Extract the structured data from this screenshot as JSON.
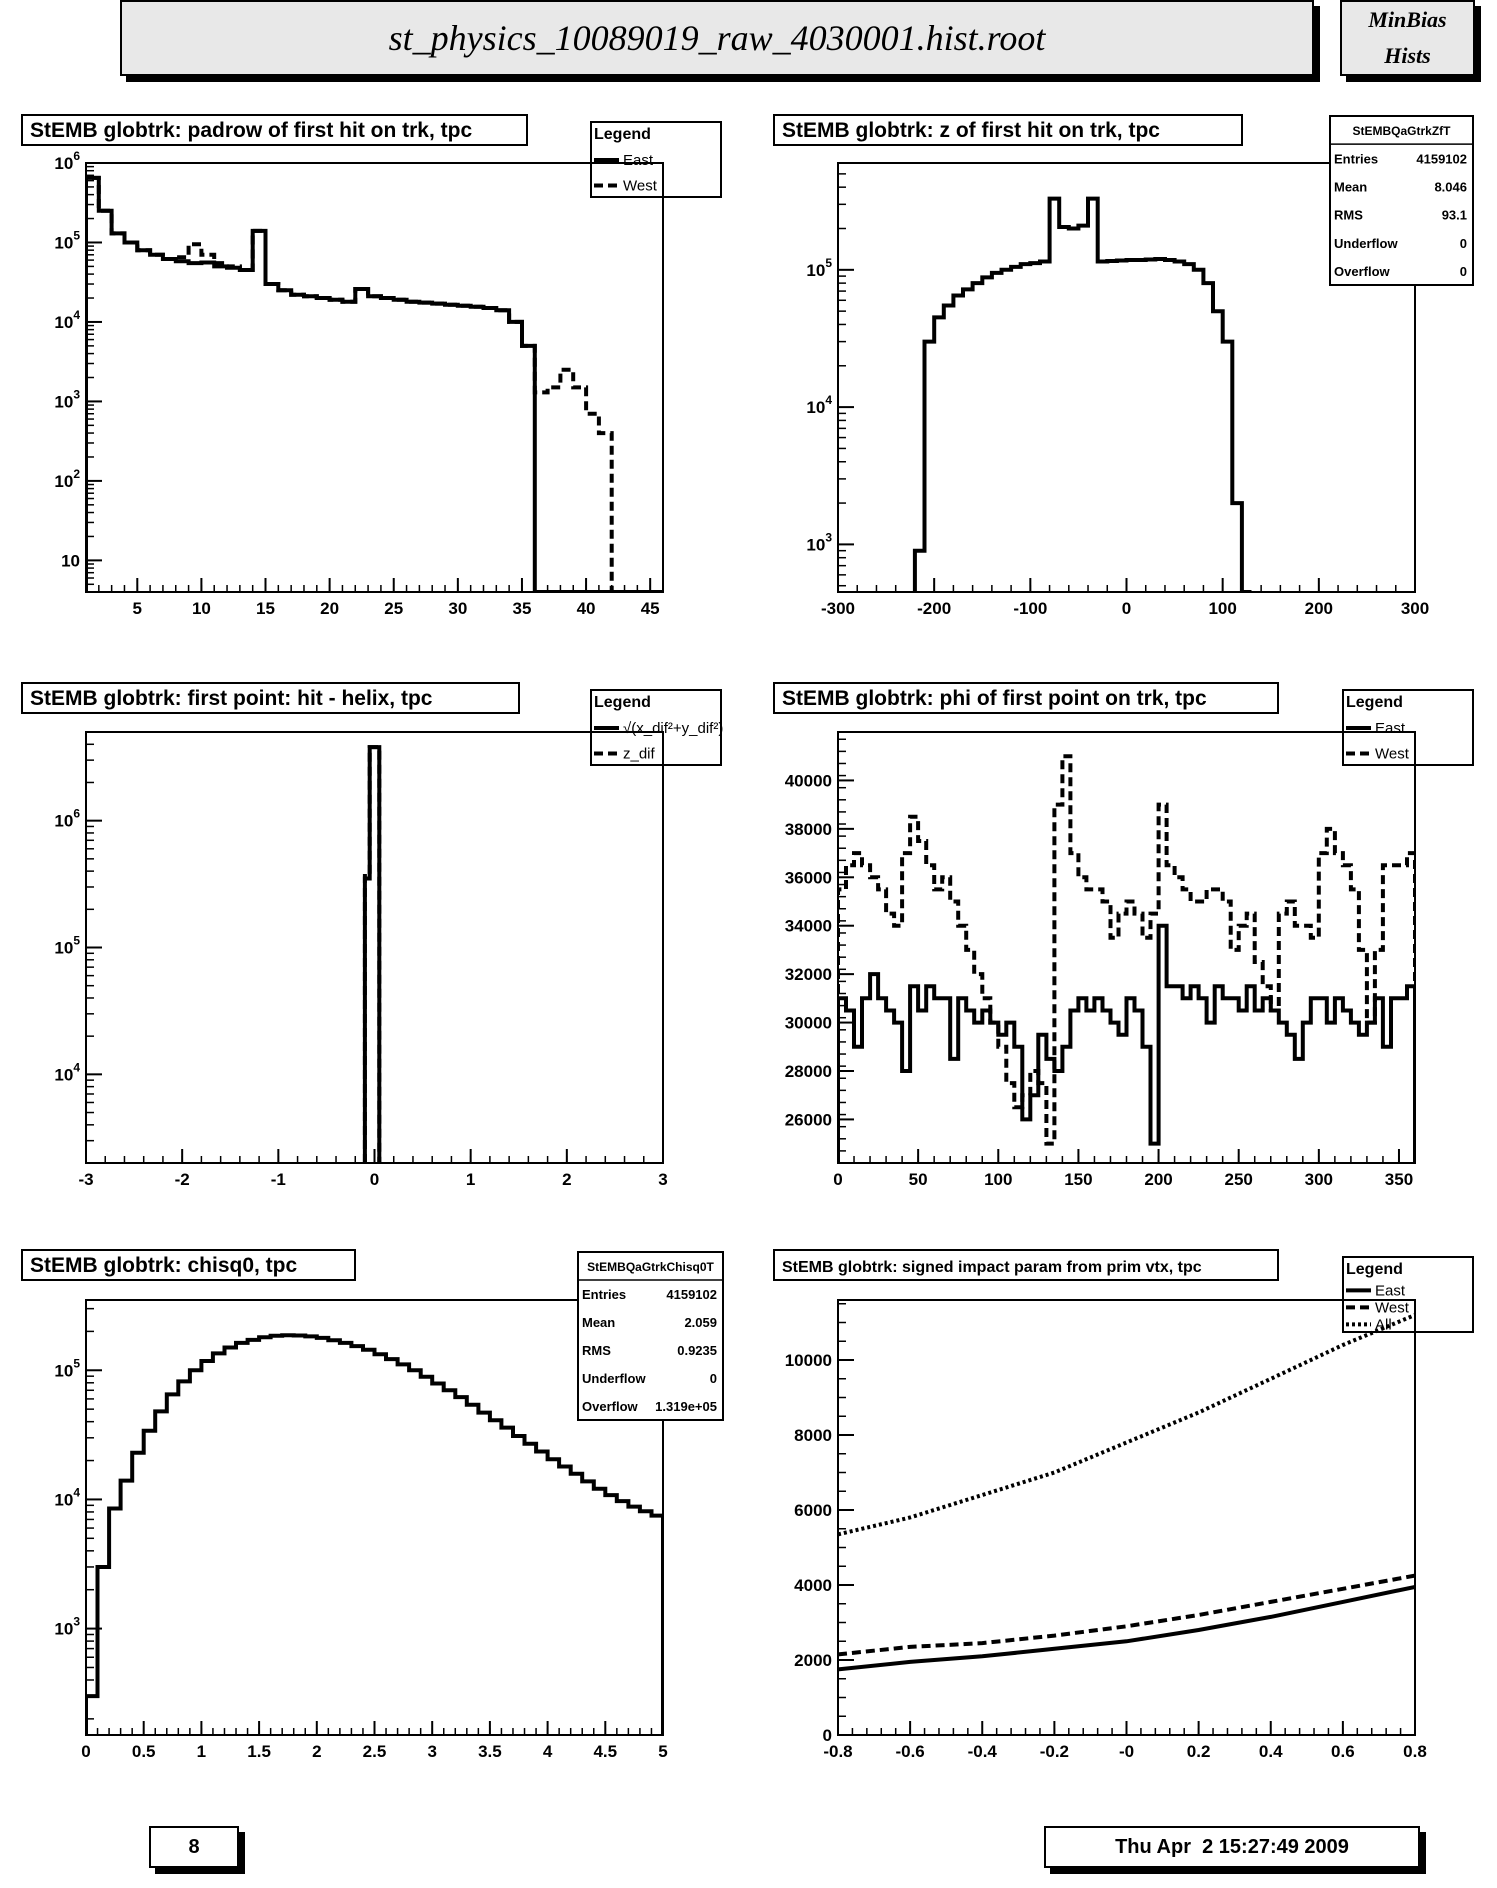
{
  "header": {
    "title": "st_physics_10089019_raw_4030001.hist.root",
    "side_line1": "MinBias",
    "side_line2": "Hists"
  },
  "footer": {
    "page_number": "8",
    "timestamp": "Thu Apr  2 15:27:49 2009"
  },
  "chart_data": [
    {
      "type": "line",
      "title": "StEMB globtrk: padrow of first hit on trk, tpc",
      "xlim": [
        1,
        46
      ],
      "ylim": [
        4,
        1000000
      ],
      "log_y": true,
      "x_ticks": [
        5,
        10,
        15,
        20,
        25,
        30,
        35,
        40,
        45
      ],
      "y_ticks": [
        {
          "value": 10,
          "label": "10"
        },
        {
          "value": 100,
          "label": "10^2"
        },
        {
          "value": 1000,
          "label": "10^3"
        },
        {
          "value": 10000,
          "label": "10^4"
        },
        {
          "value": 100000,
          "label": "10^5"
        },
        {
          "value": 1000000,
          "label": "10^6"
        }
      ],
      "legend": {
        "title": "Legend",
        "position": "top-right",
        "entries": [
          {
            "label": "East",
            "style": "solid"
          },
          {
            "label": "West",
            "style": "dashed"
          }
        ]
      },
      "series": [
        {
          "name": "East",
          "style": "solid",
          "hist": true,
          "x_start": 1,
          "bin_width": 1,
          "values": [
            650000,
            250000,
            130000,
            100000,
            80000,
            70000,
            62000,
            58000,
            55000,
            56000,
            50000,
            48000,
            45000,
            140000,
            30000,
            25000,
            22000,
            21000,
            20000,
            19000,
            18000,
            26000,
            21000,
            20000,
            19000,
            18000,
            17500,
            17000,
            16500,
            16000,
            15500,
            15000,
            14000,
            10000,
            5000,
            0,
            0,
            0,
            0,
            0,
            0,
            0,
            0,
            0,
            0
          ]
        },
        {
          "name": "West",
          "style": "dashed",
          "hist": true,
          "x_start": 1,
          "bin_width": 1,
          "values": [
            650000,
            250000,
            130000,
            100000,
            80000,
            70000,
            62000,
            65000,
            95000,
            70000,
            55000,
            50000,
            45000,
            140000,
            30000,
            25000,
            22000,
            21000,
            20000,
            19000,
            18000,
            26000,
            21000,
            20000,
            19000,
            18000,
            17500,
            17000,
            16500,
            16000,
            15500,
            15000,
            14000,
            10000,
            5000,
            1300,
            1500,
            2500,
            1500,
            700,
            400,
            0,
            0,
            0,
            0
          ]
        }
      ],
      "stats": null
    },
    {
      "type": "line",
      "title": "StEMB globtrk: z of first hit on trk, tpc",
      "xlim": [
        -300,
        300
      ],
      "ylim": [
        450,
        600000
      ],
      "log_y": true,
      "x_ticks": [
        -300,
        -200,
        -100,
        0,
        100,
        200,
        300
      ],
      "y_ticks": [
        {
          "value": 1000,
          "label": "10^3"
        },
        {
          "value": 10000,
          "label": "10^4"
        },
        {
          "value": 100000,
          "label": "10^5"
        }
      ],
      "legend": null,
      "series": [
        {
          "name": "",
          "style": "solid",
          "hist": true,
          "x_start": -220,
          "bin_width": 10,
          "values": [
            900,
            30000,
            45000,
            55000,
            65000,
            72000,
            80000,
            88000,
            95000,
            100000,
            105000,
            110000,
            112000,
            115000,
            330000,
            205000,
            200000,
            210000,
            330000,
            115000,
            116000,
            117000,
            118000,
            118000,
            119000,
            120000,
            118000,
            115000,
            110000,
            100000,
            80000,
            50000,
            30000,
            2000,
            0
          ]
        }
      ],
      "stats": {
        "title": "StEMBQaGtrkZfT",
        "rows": [
          {
            "label": "Entries",
            "value": "4159102"
          },
          {
            "label": "Mean",
            "value": "8.046"
          },
          {
            "label": "RMS",
            "value": "93.1"
          },
          {
            "label": "Underflow",
            "value": "0"
          },
          {
            "label": "Overflow",
            "value": "0"
          }
        ]
      }
    },
    {
      "type": "line",
      "title": "StEMB globtrk: first point: hit - helix, tpc",
      "xlim": [
        -3,
        3
      ],
      "ylim": [
        2000,
        5000000
      ],
      "log_y": true,
      "x_ticks": [
        -3,
        -2,
        -1,
        0,
        1,
        2,
        3
      ],
      "y_ticks": [
        {
          "value": 10000,
          "label": "10^4"
        },
        {
          "value": 100000,
          "label": "10^5"
        },
        {
          "value": 1000000,
          "label": "10^6"
        }
      ],
      "legend": {
        "title": "Legend",
        "position": "top-right",
        "entries": [
          {
            "label": "√(x_dif²+y_dif²)",
            "style": "solid"
          },
          {
            "label": "z_dif",
            "style": "dashed"
          }
        ]
      },
      "series": [
        {
          "name": "√(x_dif²+y_dif²)",
          "style": "solid",
          "hist": true,
          "x_start": -0.1,
          "bin_width": 0.05,
          "values": [
            350000,
            3800000,
            3800000
          ]
        },
        {
          "name": "z_dif",
          "style": "dashed",
          "hist": true,
          "x_start": -0.1,
          "bin_width": 0.05,
          "values": [
            380000,
            3800000,
            3800000
          ]
        }
      ],
      "stats": null
    },
    {
      "type": "line",
      "title": "StEMB globtrk: phi of first point on trk, tpc",
      "xlim": [
        0,
        360
      ],
      "ylim": [
        24200,
        42000
      ],
      "log_y": false,
      "x_ticks": [
        0,
        50,
        100,
        150,
        200,
        250,
        300,
        350
      ],
      "y_ticks": [
        {
          "value": 26000,
          "label": "26000"
        },
        {
          "value": 28000,
          "label": "28000"
        },
        {
          "value": 30000,
          "label": "30000"
        },
        {
          "value": 32000,
          "label": "32000"
        },
        {
          "value": 34000,
          "label": "34000"
        },
        {
          "value": 36000,
          "label": "36000"
        },
        {
          "value": 38000,
          "label": "38000"
        },
        {
          "value": 40000,
          "label": "40000"
        }
      ],
      "legend": {
        "title": "Legend",
        "position": "top-right",
        "entries": [
          {
            "label": "East",
            "style": "solid"
          },
          {
            "label": "West",
            "style": "dashed"
          }
        ]
      },
      "series": [
        {
          "name": "East",
          "style": "solid",
          "hist": true,
          "x_start": 0,
          "bin_width": 5,
          "values": [
            31000,
            30500,
            29000,
            31000,
            32000,
            31000,
            30500,
            30000,
            28000,
            31500,
            30500,
            31500,
            31000,
            31000,
            28500,
            31000,
            30500,
            30000,
            30500,
            30000,
            29500,
            30000,
            29000,
            26000,
            27000,
            29500,
            28500,
            28000,
            29000,
            30500,
            31000,
            30500,
            31000,
            30500,
            30000,
            29500,
            31000,
            30500,
            29000,
            25000,
            34000,
            31500,
            31500,
            31000,
            31500,
            31000,
            30000,
            31500,
            31000,
            31000,
            30500,
            31500,
            30500,
            31000,
            30500,
            30000,
            29500,
            28500,
            30000,
            31000,
            31000,
            30000,
            31000,
            30500,
            30000,
            29500,
            30000,
            31000,
            29000,
            31000,
            31000,
            31500
          ]
        },
        {
          "name": "West",
          "style": "dashed",
          "hist": true,
          "x_start": 0,
          "bin_width": 5,
          "values": [
            35500,
            36500,
            37000,
            36500,
            36000,
            35500,
            34500,
            34000,
            37000,
            38500,
            37500,
            36500,
            35500,
            36000,
            35000,
            34000,
            33000,
            32000,
            31000,
            30000,
            29000,
            27500,
            26500,
            27000,
            28000,
            27500,
            25000,
            39000,
            41000,
            37000,
            36000,
            35500,
            35500,
            35000,
            33500,
            34500,
            35000,
            34500,
            33500,
            34500,
            39000,
            36500,
            36000,
            35500,
            35000,
            35000,
            35500,
            35500,
            35000,
            33000,
            34000,
            34500,
            32500,
            31500,
            30500,
            34500,
            35000,
            34000,
            34000,
            33500,
            37000,
            38000,
            37000,
            36500,
            35500,
            33000,
            30000,
            33000,
            36500,
            36500,
            36500,
            37000
          ]
        }
      ],
      "stats": null
    },
    {
      "type": "line",
      "title": "StEMB globtrk: chisq0, tpc",
      "xlim": [
        0,
        5
      ],
      "ylim": [
        150,
        350000
      ],
      "log_y": true,
      "x_ticks": [
        0,
        0.5,
        1,
        1.5,
        2,
        2.5,
        3,
        3.5,
        4,
        4.5,
        5
      ],
      "y_ticks": [
        {
          "value": 1000,
          "label": "10^3"
        },
        {
          "value": 10000,
          "label": "10^4"
        },
        {
          "value": 100000,
          "label": "10^5"
        }
      ],
      "legend": null,
      "series": [
        {
          "name": "",
          "style": "solid",
          "hist": true,
          "x_start": 0,
          "bin_width": 0.1,
          "values": [
            300,
            3000,
            8500,
            14000,
            23000,
            34000,
            48000,
            65000,
            82000,
            100000,
            118000,
            135000,
            150000,
            163000,
            172000,
            180000,
            185000,
            187000,
            186000,
            183000,
            178000,
            171000,
            163000,
            154000,
            144000,
            133000,
            122000,
            111000,
            100000,
            89000,
            79000,
            70000,
            62000,
            54000,
            47000,
            41000,
            36000,
            31000,
            27000,
            23500,
            20500,
            18000,
            15800,
            13800,
            12100,
            10800,
            9700,
            8800,
            8100,
            7500
          ]
        }
      ],
      "stats": {
        "title": "StEMBQaGtrkChisq0T",
        "rows": [
          {
            "label": "Entries",
            "value": "4159102"
          },
          {
            "label": "Mean",
            "value": "2.059"
          },
          {
            "label": "RMS",
            "value": "0.9235"
          },
          {
            "label": "Underflow",
            "value": "0"
          },
          {
            "label": "Overflow",
            "value": "1.319e+05"
          }
        ]
      }
    },
    {
      "type": "line",
      "title": "StEMB globtrk: signed impact param from prim vtx, tpc",
      "xlim": [
        -0.8,
        0.8
      ],
      "ylim": [
        0,
        11600
      ],
      "log_y": false,
      "x_ticks": [
        -0.8,
        -0.6,
        -0.4,
        -0.2,
        0,
        0.2,
        0.4,
        0.6,
        0.8
      ],
      "x_tick_labels": [
        "-0.8",
        "-0.6",
        "-0.4",
        "-0.2",
        "-0",
        "0.2",
        "0.4",
        "0.6",
        "0.8"
      ],
      "y_ticks": [
        {
          "value": 0,
          "label": "0"
        },
        {
          "value": 2000,
          "label": "2000"
        },
        {
          "value": 4000,
          "label": "4000"
        },
        {
          "value": 6000,
          "label": "6000"
        },
        {
          "value": 8000,
          "label": "8000"
        },
        {
          "value": 10000,
          "label": "10000"
        }
      ],
      "legend": {
        "title": "Legend",
        "position": "top-right",
        "entries": [
          {
            "label": "East",
            "style": "solid"
          },
          {
            "label": "West",
            "style": "dashed"
          },
          {
            "label": "All",
            "style": "dotted"
          }
        ]
      },
      "series": [
        {
          "name": "East",
          "style": "solid",
          "hist": false,
          "x": [
            -0.8,
            -0.6,
            -0.4,
            -0.2,
            0.0,
            0.2,
            0.4,
            0.6,
            0.8
          ],
          "values": [
            1750,
            1950,
            2100,
            2300,
            2500,
            2800,
            3150,
            3550,
            3950
          ]
        },
        {
          "name": "West",
          "style": "dashed",
          "hist": false,
          "x": [
            -0.8,
            -0.6,
            -0.4,
            -0.2,
            0.0,
            0.2,
            0.4,
            0.6,
            0.8
          ],
          "values": [
            2150,
            2350,
            2450,
            2650,
            2900,
            3200,
            3550,
            3900,
            4250
          ]
        },
        {
          "name": "All",
          "style": "dotted",
          "hist": false,
          "x": [
            -0.8,
            -0.6,
            -0.4,
            -0.2,
            0.0,
            0.2,
            0.4,
            0.6,
            0.8
          ],
          "values": [
            5350,
            5800,
            6400,
            7000,
            7800,
            8600,
            9500,
            10400,
            11200
          ]
        }
      ],
      "stats": null
    }
  ]
}
